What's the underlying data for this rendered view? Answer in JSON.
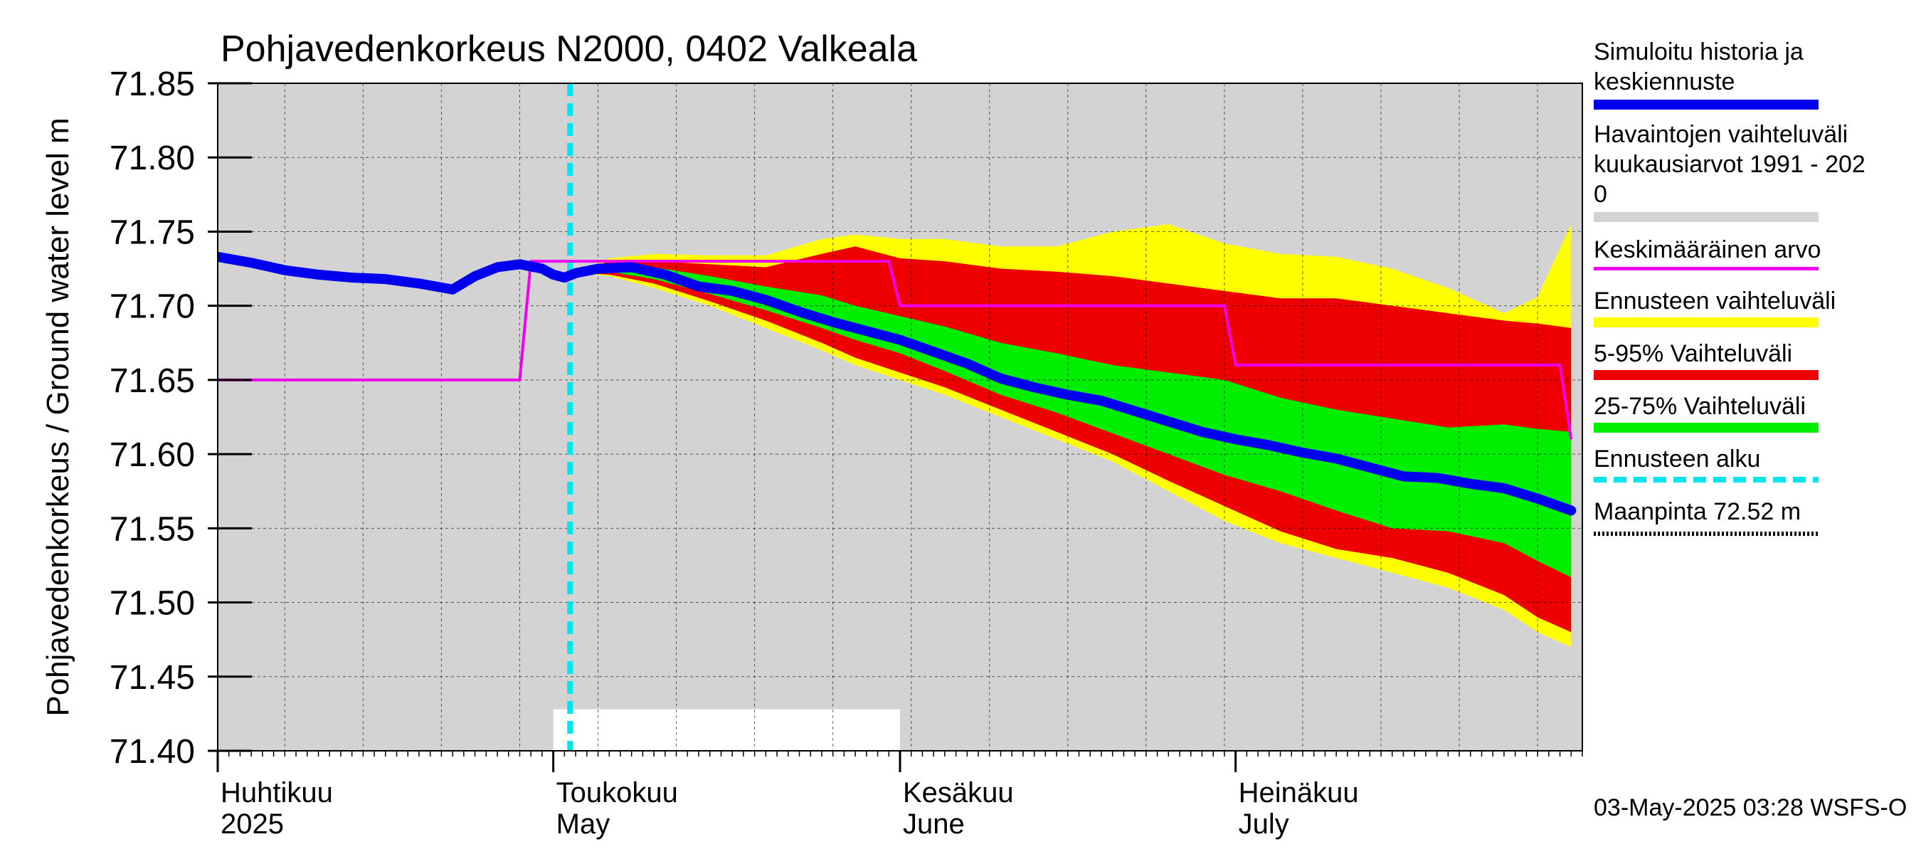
{
  "chart_data": {
    "type": "area",
    "title": "Pohjavedenkorkeus N2000, 0402 Valkeala",
    "ylabel": "Pohjavedenkorkeus / Ground water level   m",
    "ylim": [
      71.4,
      71.85
    ],
    "yticks": [
      "71.85",
      "71.80",
      "71.75",
      "71.70",
      "71.65",
      "71.60",
      "71.55",
      "71.50",
      "71.45",
      "71.40"
    ],
    "xlim": [
      "2025-04-01",
      "2025-07-31"
    ],
    "x_months": [
      {
        "date": "2025-04-01",
        "fi": "Huhtikuu",
        "en": "2025"
      },
      {
        "date": "2025-05-01",
        "fi": "Toukokuu",
        "en": "May"
      },
      {
        "date": "2025-06-01",
        "fi": "Kesäkuu",
        "en": "June"
      },
      {
        "date": "2025-07-01",
        "fi": "Heinäkuu",
        "en": "July"
      }
    ],
    "forecast_start": "2025-05-03",
    "grid": true,
    "legend_position": "right",
    "legend": [
      {
        "label": "Simuloitu historia ja keskiennuste",
        "color": "#0000ee",
        "style": "thick"
      },
      {
        "label": "Havaintojen vaihteluväli kuukausiarvot 1991 - 2020",
        "color": "#d3d3d3",
        "style": "band"
      },
      {
        "label": "Keskimääräinen arvo",
        "color": "#ee00ee",
        "style": "line"
      },
      {
        "label": "Ennusteen vaihteluväli",
        "color": "#ffff00",
        "style": "band"
      },
      {
        "label": "5-95% Vaihteluväli",
        "color": "#ee0000",
        "style": "band"
      },
      {
        "label": "25-75% Vaihteluväli",
        "color": "#00ee00",
        "style": "band"
      },
      {
        "label": "Ennusteen alku",
        "color": "#00e5ee",
        "style": "dashed"
      },
      {
        "label": "Maanpinta 72.52 m",
        "color": "#000000",
        "style": "dotted"
      }
    ],
    "observed_range_monthly": [
      {
        "start": "2025-04-01",
        "end": "2025-04-30",
        "low": null,
        "high": null
      },
      {
        "start": "2025-05-01",
        "end": "2025-05-31",
        "low": 71.4,
        "high": 71.428
      }
    ],
    "series": [
      {
        "name": "Simuloitu historia ja keskiennuste",
        "color": "#0000ee",
        "x": [
          "2025-04-01",
          "2025-04-04",
          "2025-04-07",
          "2025-04-10",
          "2025-04-13",
          "2025-04-16",
          "2025-04-19",
          "2025-04-22",
          "2025-04-24",
          "2025-04-26",
          "2025-04-28",
          "2025-04-30",
          "2025-05-01",
          "2025-05-02",
          "2025-05-03",
          "2025-05-05",
          "2025-05-08",
          "2025-05-11",
          "2025-05-14",
          "2025-05-17",
          "2025-05-20",
          "2025-05-23",
          "2025-05-26",
          "2025-05-29",
          "2025-06-01",
          "2025-06-04",
          "2025-06-07",
          "2025-06-10",
          "2025-06-13",
          "2025-06-16",
          "2025-06-19",
          "2025-06-22",
          "2025-06-25",
          "2025-06-28",
          "2025-07-01",
          "2025-07-04",
          "2025-07-07",
          "2025-07-10",
          "2025-07-13",
          "2025-07-16",
          "2025-07-19",
          "2025-07-22",
          "2025-07-25",
          "2025-07-28",
          "2025-07-31"
        ],
        "values": [
          71.733,
          71.729,
          71.724,
          71.721,
          71.719,
          71.718,
          71.715,
          71.711,
          71.72,
          71.726,
          71.728,
          71.725,
          71.721,
          71.719,
          71.722,
          71.725,
          71.726,
          71.721,
          71.713,
          71.71,
          71.704,
          71.696,
          71.689,
          71.683,
          71.677,
          71.669,
          71.661,
          71.651,
          71.645,
          71.64,
          71.636,
          71.629,
          71.622,
          71.615,
          71.61,
          71.606,
          71.601,
          71.597,
          71.591,
          71.585,
          71.584,
          71.58,
          71.577,
          71.57,
          71.562
        ]
      },
      {
        "name": "Keskimääräinen arvo",
        "color": "#ee00ee",
        "x": [
          "2025-04-01",
          "2025-04-28",
          "2025-04-29",
          "2025-05-31",
          "2025-06-01",
          "2025-06-30",
          "2025-07-01",
          "2025-07-30",
          "2025-07-31"
        ],
        "values": [
          71.65,
          71.65,
          71.73,
          71.73,
          71.7,
          71.7,
          71.66,
          71.66,
          71.61
        ]
      }
    ],
    "bands": [
      {
        "name": "Ennusteen vaihteluväli",
        "color": "#ffff00",
        "x": [
          "2025-05-03",
          "2025-05-06",
          "2025-05-10",
          "2025-05-15",
          "2025-05-20",
          "2025-05-25",
          "2025-05-28",
          "2025-06-01",
          "2025-06-05",
          "2025-06-10",
          "2025-06-15",
          "2025-06-20",
          "2025-06-25",
          "2025-06-30",
          "2025-07-05",
          "2025-07-10",
          "2025-07-15",
          "2025-07-20",
          "2025-07-25",
          "2025-07-28",
          "2025-07-31"
        ],
        "low": [
          71.722,
          71.72,
          71.712,
          71.7,
          71.685,
          71.67,
          71.66,
          71.65,
          71.64,
          71.625,
          71.61,
          71.595,
          71.575,
          71.555,
          71.54,
          71.53,
          71.52,
          71.51,
          71.495,
          71.48,
          71.47
        ],
        "high": [
          71.722,
          71.732,
          71.735,
          71.734,
          71.734,
          71.745,
          71.748,
          71.745,
          71.745,
          71.74,
          71.74,
          71.75,
          71.755,
          71.742,
          71.735,
          71.733,
          71.725,
          71.712,
          71.695,
          71.706,
          71.755
        ]
      },
      {
        "name": "5-95% Vaihteluväli",
        "color": "#ee0000",
        "x": [
          "2025-05-03",
          "2025-05-06",
          "2025-05-10",
          "2025-05-15",
          "2025-05-20",
          "2025-05-25",
          "2025-05-28",
          "2025-06-01",
          "2025-06-05",
          "2025-06-10",
          "2025-06-15",
          "2025-06-20",
          "2025-06-25",
          "2025-06-30",
          "2025-07-05",
          "2025-07-10",
          "2025-07-15",
          "2025-07-20",
          "2025-07-25",
          "2025-07-28",
          "2025-07-31"
        ],
        "low": [
          71.722,
          71.721,
          71.715,
          71.703,
          71.69,
          71.675,
          71.665,
          71.655,
          71.645,
          71.63,
          71.615,
          71.6,
          71.582,
          71.565,
          71.548,
          71.536,
          71.53,
          71.52,
          71.505,
          71.49,
          71.48
        ],
        "high": [
          71.722,
          71.73,
          71.73,
          71.728,
          71.726,
          71.735,
          71.74,
          71.732,
          71.73,
          71.725,
          71.723,
          71.72,
          71.715,
          71.71,
          71.705,
          71.705,
          71.7,
          71.695,
          71.69,
          71.688,
          71.685
        ]
      },
      {
        "name": "25-75% Vaihteluväli",
        "color": "#00ee00",
        "x": [
          "2025-05-03",
          "2025-05-06",
          "2025-05-10",
          "2025-05-15",
          "2025-05-20",
          "2025-05-25",
          "2025-05-28",
          "2025-06-01",
          "2025-06-05",
          "2025-06-10",
          "2025-06-15",
          "2025-06-20",
          "2025-06-25",
          "2025-06-30",
          "2025-07-05",
          "2025-07-10",
          "2025-07-15",
          "2025-07-20",
          "2025-07-25",
          "2025-07-28",
          "2025-07-31"
        ],
        "low": [
          71.722,
          71.723,
          71.718,
          71.708,
          71.697,
          71.685,
          71.677,
          71.668,
          71.656,
          71.64,
          71.628,
          71.614,
          71.6,
          71.586,
          71.575,
          71.562,
          71.55,
          71.548,
          71.54,
          71.528,
          71.517
        ],
        "high": [
          71.722,
          71.727,
          71.726,
          71.72,
          71.713,
          71.707,
          71.7,
          71.693,
          71.686,
          71.675,
          71.668,
          71.66,
          71.655,
          71.65,
          71.638,
          71.63,
          71.624,
          71.618,
          71.62,
          71.617,
          71.615
        ]
      }
    ]
  },
  "footer": {
    "timestamp": "03-May-2025 03:28 WSFS-O"
  }
}
